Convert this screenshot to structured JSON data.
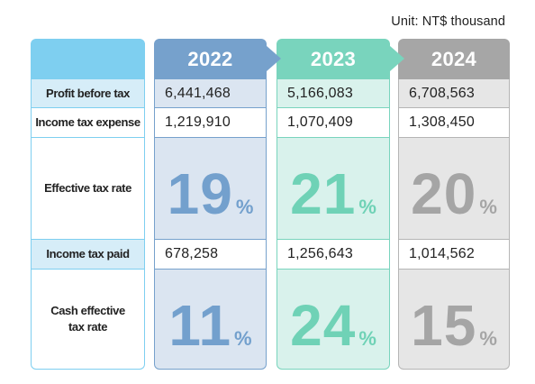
{
  "unit_label": "Unit: NT$ thousand",
  "row_labels": {
    "profit": "Profit before tax",
    "expense": "Income tax expense",
    "etr": "Effective tax rate",
    "paid": "Income tax paid",
    "cash_etr_line1": "Cash effective",
    "cash_etr_line2": "tax rate"
  },
  "years": [
    {
      "year": "2022",
      "profit_before_tax": "6,441,468",
      "income_tax_expense": "1,219,910",
      "effective_tax_rate": "19",
      "income_tax_paid": "678,258",
      "cash_effective_tax_rate": "11"
    },
    {
      "year": "2023",
      "profit_before_tax": "5,166,083",
      "income_tax_expense": "1,070,409",
      "effective_tax_rate": "21",
      "income_tax_paid": "1,256,643",
      "cash_effective_tax_rate": "24"
    },
    {
      "year": "2024",
      "profit_before_tax": "6,708,563",
      "income_tax_expense": "1,308,450",
      "effective_tax_rate": "20",
      "income_tax_paid": "1,014,562",
      "cash_effective_tax_rate": "15"
    }
  ],
  "percent_sign": "%",
  "colors": {
    "label_header": "#7ecff0",
    "year_2022": "#76a1cc",
    "year_2023": "#79d4bd",
    "year_2024": "#a6a6a6"
  }
}
